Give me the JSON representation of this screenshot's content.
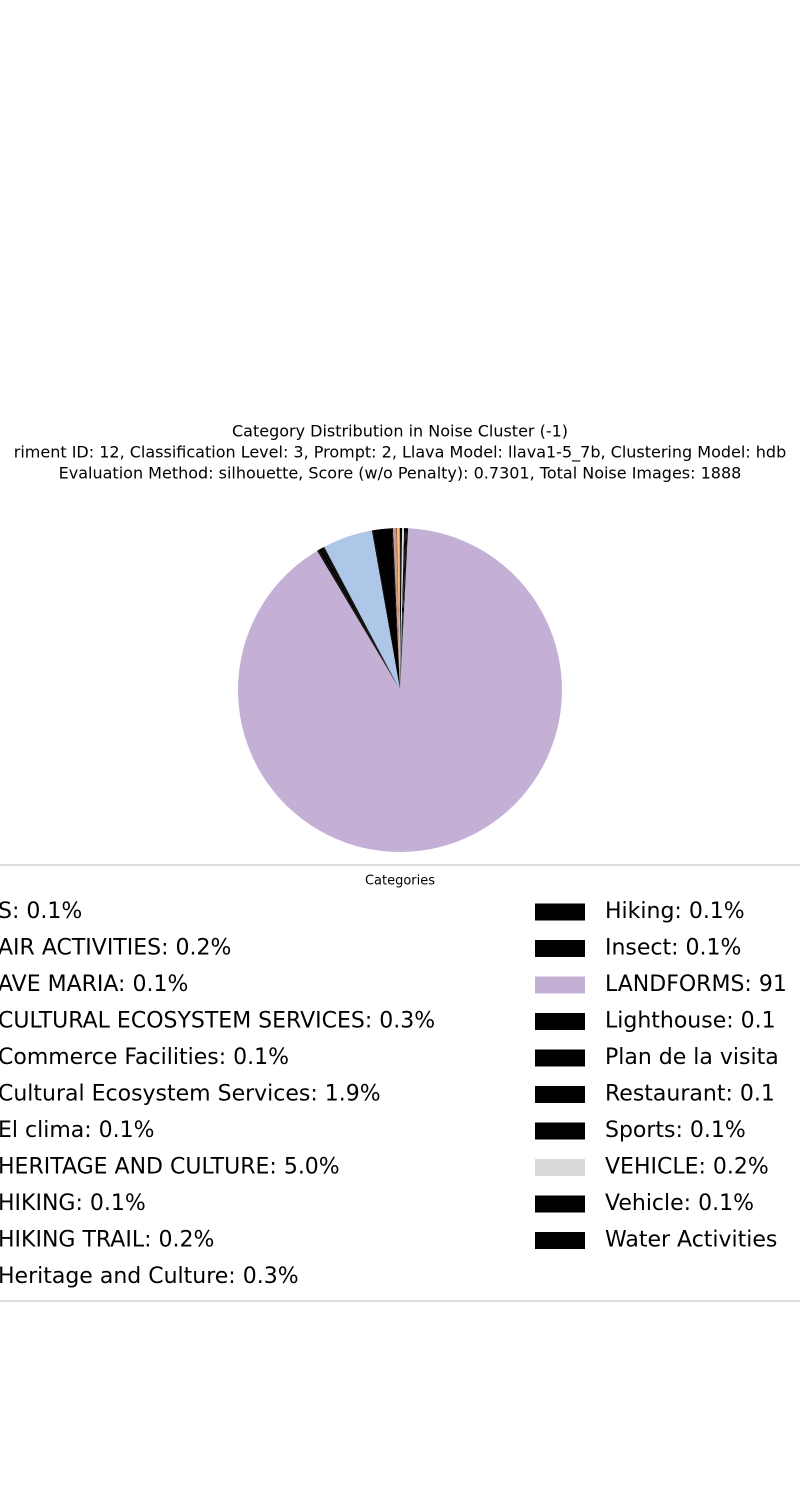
{
  "chart_data": {
    "type": "pie",
    "title": "Category Distribution in Noise Cluster (-1)",
    "subtitle_lines": [
      "riment ID: 12, Classification Level: 3, Prompt: 2, Llava Model: llava1-5_7b, Clustering Model: hdb",
      "Evaluation Method: silhouette, Score (w/o Penalty): 0.7301, Total Noise Images: 1888"
    ],
    "legend_title": "Categories",
    "labels": [
      "S: 0.1%",
      "AIR ACTIVITIES: 0.2%",
      "AVE MARIA: 0.1%",
      "CULTURAL ECOSYSTEM SERVICES: 0.3%",
      "Commerce Facilities: 0.1%",
      "Cultural Ecosystem Services: 1.9%",
      "El clima: 0.1%",
      "HERITAGE AND CULTURE: 5.0%",
      "HIKING: 0.1%",
      "HIKING TRAIL: 0.2%",
      "Heritage and Culture: 0.3%",
      "Hiking: 0.1%",
      "Insect: 0.1%",
      "LANDFORMS: 91",
      "Lighthouse: 0.1",
      "Plan de la visita",
      "Restaurant: 0.1",
      "Sports: 0.1%",
      "VEHICLE: 0.2%",
      "Vehicle: 0.1%",
      "Water Activities"
    ],
    "values": [
      0.1,
      0.2,
      0.1,
      0.3,
      0.1,
      1.9,
      0.1,
      5.0,
      0.1,
      0.2,
      0.3,
      0.1,
      0.1,
      91.2,
      0.1,
      0.1,
      0.1,
      0.1,
      0.2,
      0.1,
      0.1
    ],
    "colors": [
      "#ff7f0e",
      "#ffbb78",
      "#8c564b",
      "#c49c94",
      "#000000",
      "#000000",
      "#000000",
      "#aec7e8",
      "#000000",
      "#000000",
      "#000000",
      "#000000",
      "#000000",
      "#c5b0d5",
      "#000000",
      "#000000",
      "#000000",
      "#000000",
      "#d9d9d9",
      "#000000",
      "#000000"
    ]
  }
}
